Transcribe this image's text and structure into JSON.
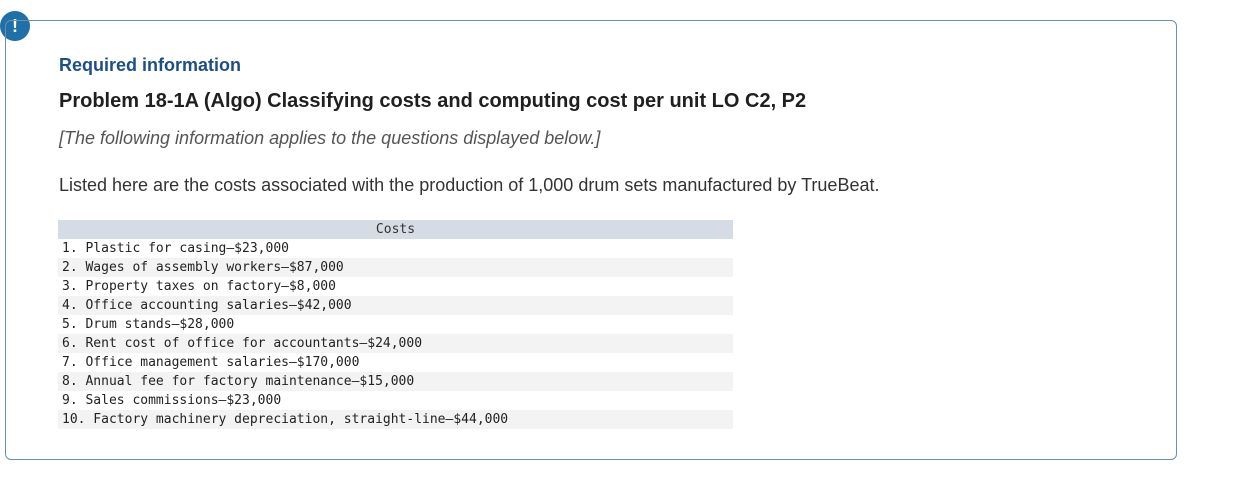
{
  "alert": {
    "glyph": "!"
  },
  "header": {
    "required": "Required information",
    "problem_title": "Problem 18-1A (Algo) Classifying costs and computing cost per unit LO C2, P2",
    "note": "[The following information applies to the questions displayed below.]",
    "intro": "Listed here are the costs associated with the production of 1,000 drum sets manufactured by TrueBeat."
  },
  "costs": {
    "header": "Costs",
    "items": [
      "1. Plastic for casing—$23,000",
      "2. Wages of assembly workers—$87,000",
      "3. Property taxes on factory—$8,000",
      "4. Office accounting salaries—$42,000",
      "5. Drum stands—$28,000",
      "6. Rent cost of office for accountants—$24,000",
      "7. Office management salaries—$170,000",
      "8. Annual fee for factory maintenance—$15,000",
      "9. Sales commissions—$23,000",
      "10. Factory machinery depreciation, straight-line—$44,000"
    ]
  }
}
